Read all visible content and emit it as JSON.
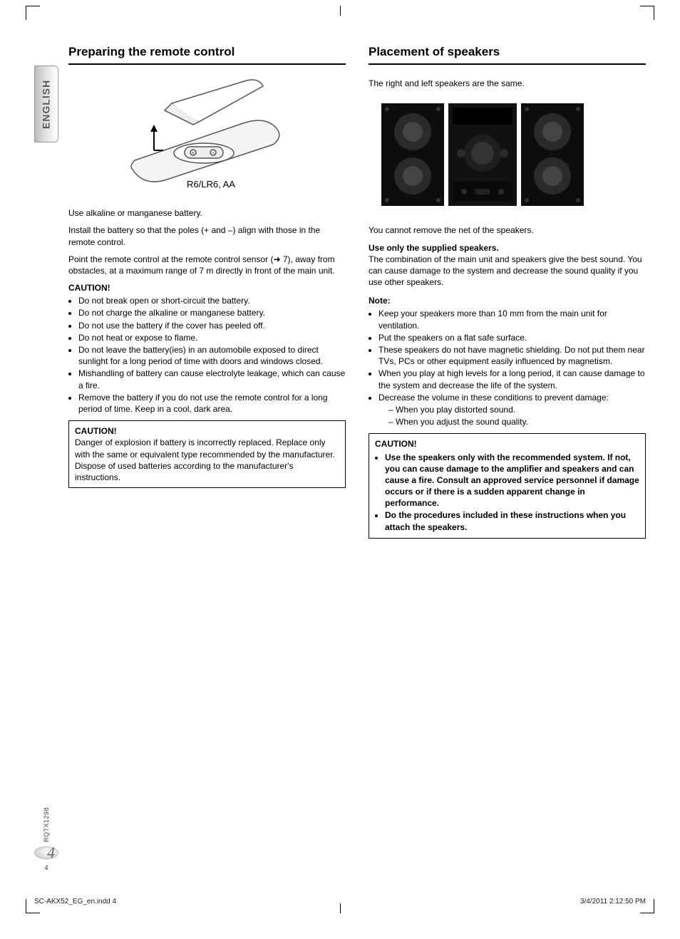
{
  "language_tab": "ENGLISH",
  "left": {
    "heading": "Preparing the remote control",
    "figure": {
      "battery_label": "R6/LR6, AA",
      "stroke": "#555555",
      "fill": "#f0f0f0"
    },
    "p1": "Use alkaline or manganese battery.",
    "p2": "Install the battery so that the poles (+ and –) align with those in the remote control.",
    "p3_a": "Point the remote control at the remote control sensor (",
    "p3_arrow": "➜",
    "p3_b": " 7), away from obstacles, at a maximum range of 7 m directly in front of the main unit.",
    "caution_label": "CAUTION!",
    "cautions": [
      "Do not break open or short-circuit the battery.",
      "Do not charge the alkaline or manganese battery.",
      "Do not use the battery if the cover has peeled off.",
      "Do not heat or expose to flame.",
      "Do not leave the battery(ies) in an automobile exposed to direct sunlight for a long period of time with doors and windows closed.",
      "Mishandling of battery can cause electrolyte leakage, which can cause a fire.",
      "Remove the battery if you do not use the remote control for a long period of time. Keep in a cool, dark area."
    ],
    "caution_box": {
      "label": "CAUTION!",
      "text": "Danger of explosion if battery is incorrectly replaced. Replace only with the same or equivalent type recommended by the manufacturer. Dispose of used batteries according to the manufacturer's instructions."
    }
  },
  "right": {
    "heading": "Placement of speakers",
    "p1": "The right and left speakers are the same.",
    "figure": {
      "bg": "#0d0d0d",
      "cone": "#333333",
      "accent": "#5b5b5b",
      "panel": "#1a1a1a"
    },
    "p2": "You cannot remove the net of the speakers.",
    "supplied_heading": "Use only the supplied speakers.",
    "supplied_text": "The combination of the main unit and speakers give the best sound. You can cause damage to the system and decrease the sound quality if you use other speakers.",
    "note_label": "Note:",
    "notes": [
      "Keep your speakers more than 10 mm from the main unit for ventilation.",
      "Put the speakers on a flat safe surface.",
      "These speakers do not have magnetic shielding. Do not put them near TVs, PCs or other equipment easily influenced by magnetism.",
      "When you play at high levels for a long period, it can cause damage to the system and decrease the life of the system."
    ],
    "note_decrease": "Decrease the volume in these conditions to prevent damage:",
    "note_sub": [
      "When you play distorted sound.",
      "When you adjust the sound quality."
    ],
    "caution_box": {
      "label": "CAUTION!",
      "bullets": [
        "Use the speakers only with the recommended system. If not, you can cause damage to the amplifier and speakers and can cause a fire. Consult an approved service personnel if damage occurs or if there is a sudden apparent change in performance.",
        "Do the procedures included in these instructions when you attach the speakers."
      ]
    }
  },
  "side": {
    "code": "RQTX1298",
    "page_italic": "4",
    "page_small": "4"
  },
  "footer": {
    "file": "SC-AKX52_EG_en.indd   4",
    "timestamp": "3/4/2011   2:12:50 PM"
  }
}
